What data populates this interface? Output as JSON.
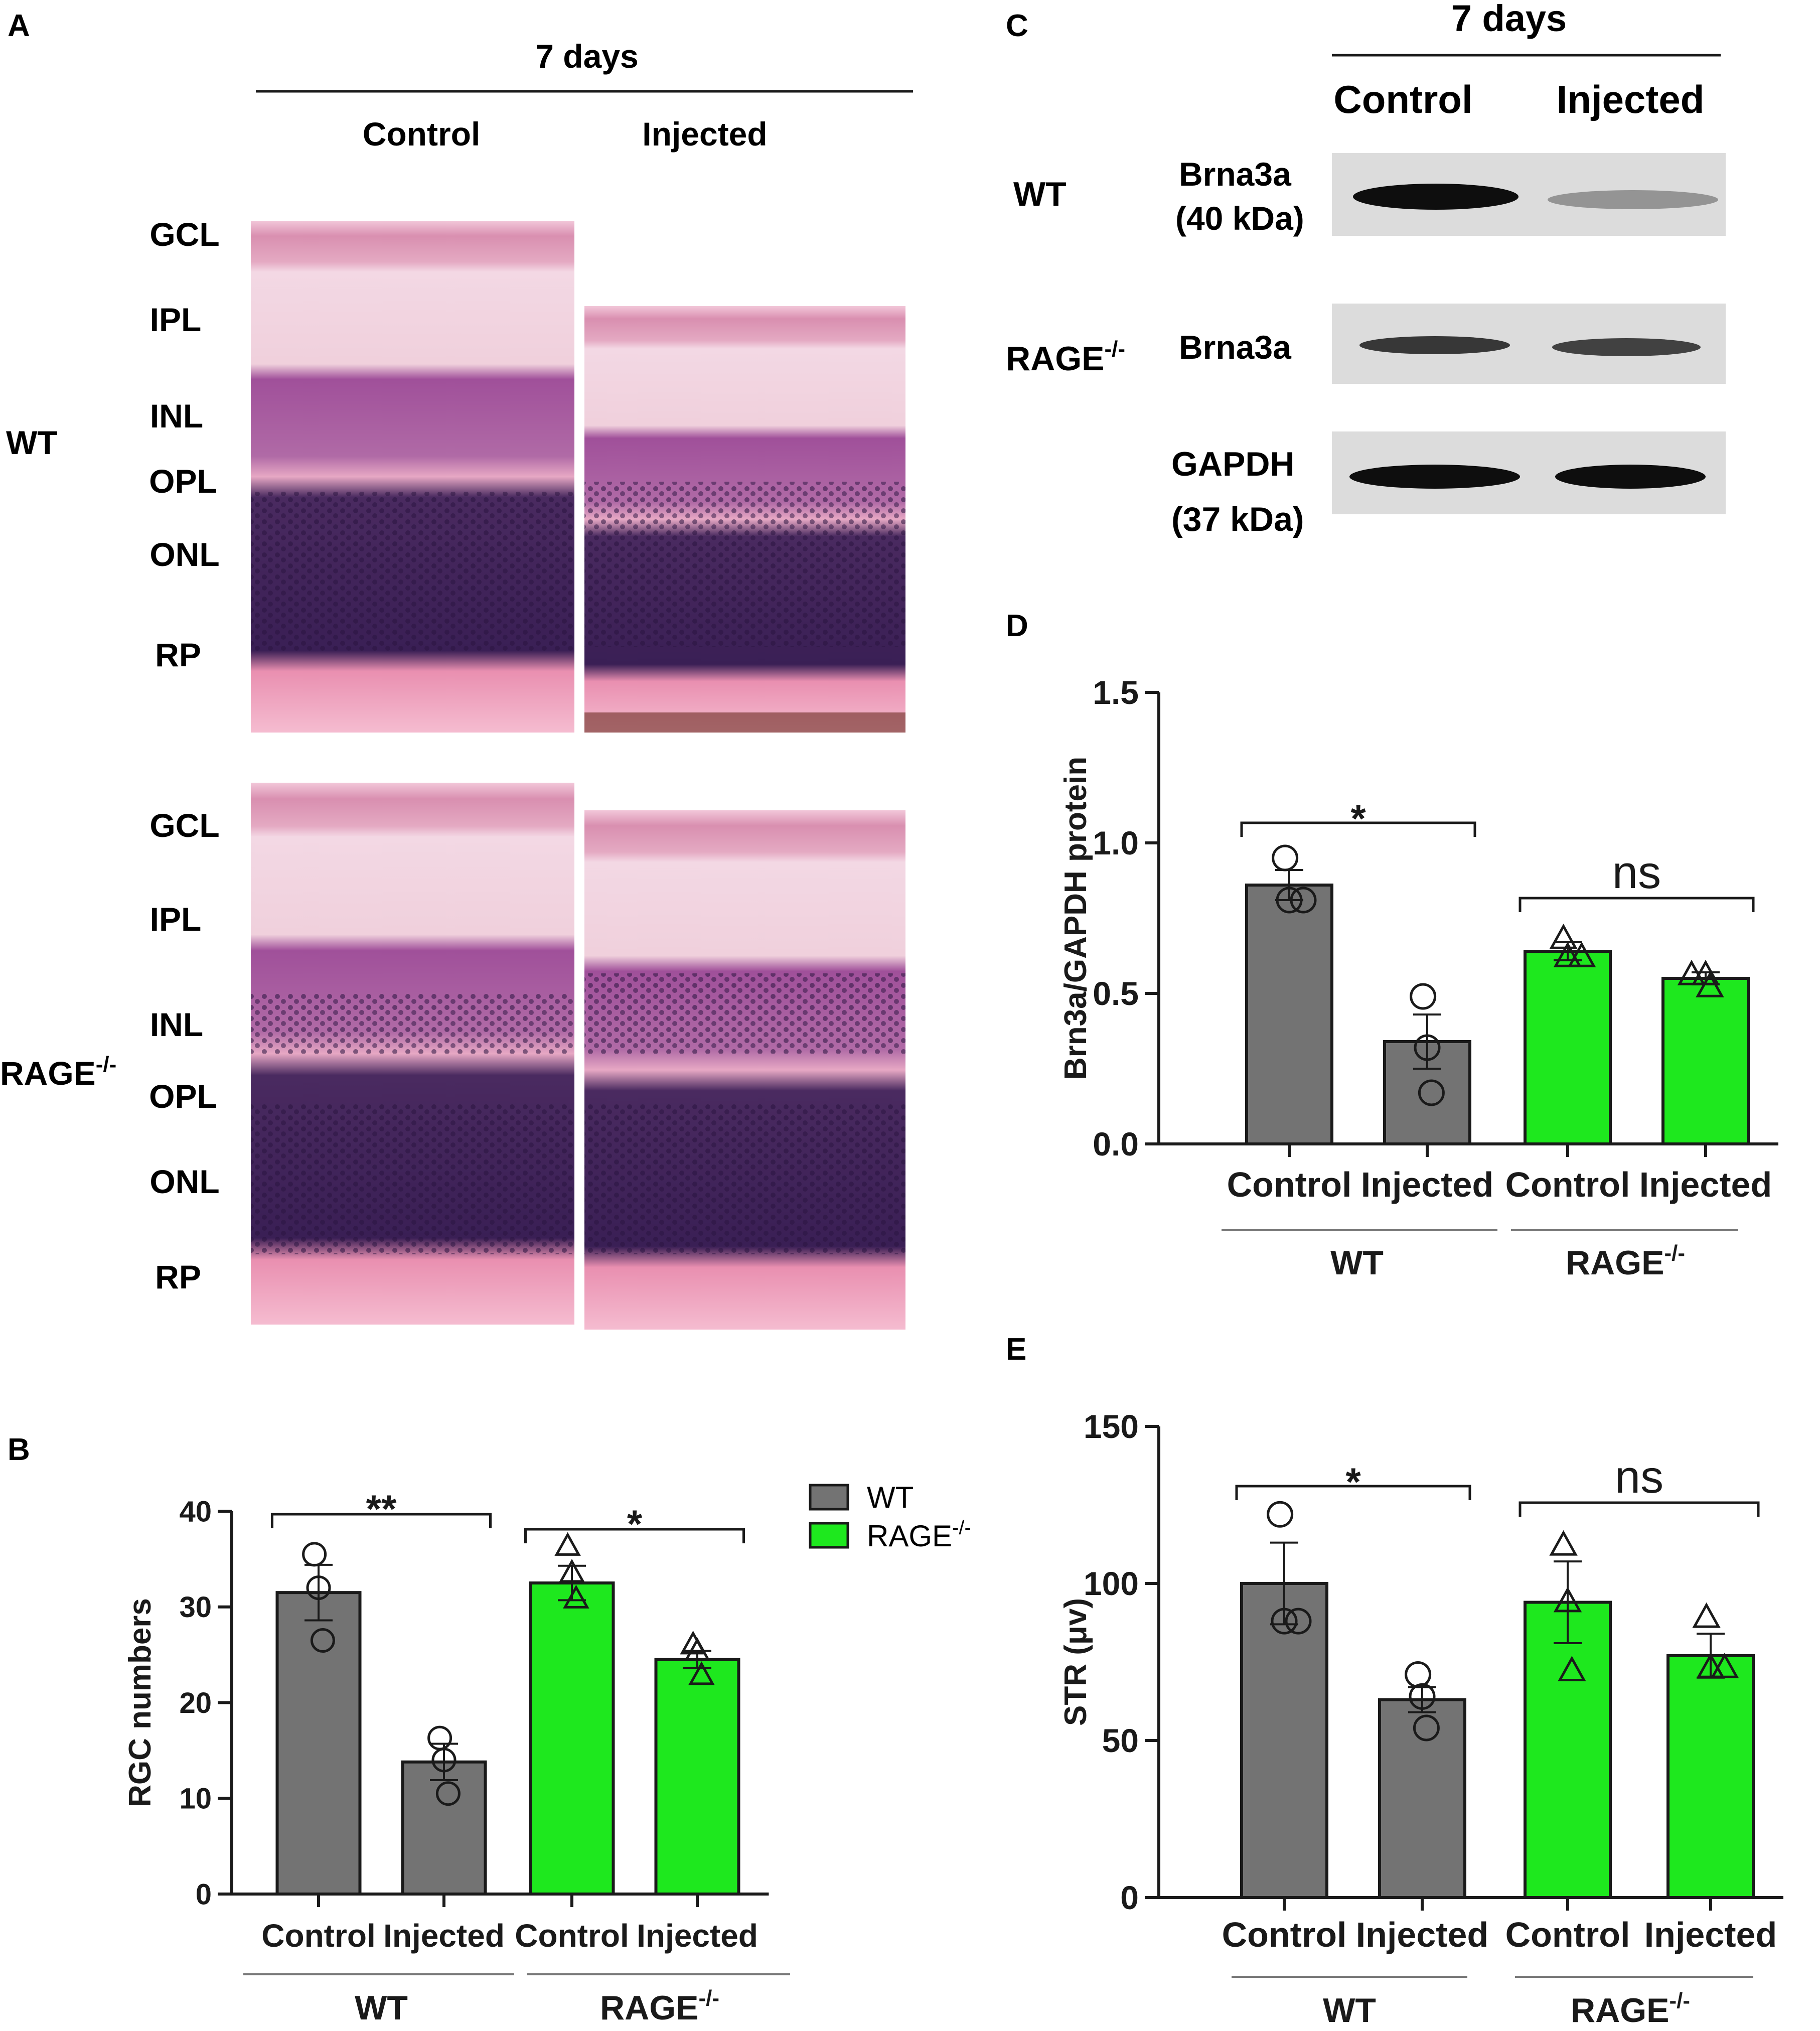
{
  "colors": {
    "wt": "#737373",
    "rage": "#1ee81e",
    "ink": "#1a1a1a",
    "blot_bg": "#dcdcdc",
    "band": "#0e0e0e"
  },
  "panel_a": {
    "letter": "A",
    "time": "7 days",
    "col_headers": [
      "Control",
      "Injected"
    ],
    "rows": [
      {
        "name": "WT",
        "sup": ""
      },
      {
        "name": "RAGE",
        "sup": "-/-"
      }
    ],
    "layers_top": [
      "GCL",
      "IPL",
      "INL",
      "OPL",
      "ONL",
      "RP"
    ],
    "layers_bottom": [
      "GCL",
      "IPL",
      "INL",
      "OPL",
      "ONL",
      "RP"
    ]
  },
  "panel_c": {
    "letter": "C",
    "time": "7 days",
    "col_headers": [
      "Control",
      "Injected"
    ],
    "blots": [
      {
        "row_label": "WT",
        "row_sup": "",
        "protein": "Brna3a",
        "kda": "(40 kDa)",
        "bands": [
          1.0,
          0.35
        ]
      },
      {
        "row_label": "RAGE",
        "row_sup": "-/-",
        "protein": "Brna3a",
        "kda": "",
        "bands": [
          0.75,
          0.7
        ]
      },
      {
        "row_label": "",
        "row_sup": "",
        "protein": "GAPDH",
        "kda": "(37 kDa)",
        "bands": [
          1.0,
          1.0
        ]
      }
    ]
  },
  "panel_b": {
    "letter": "B",
    "legend": [
      {
        "name": "WT",
        "sup": ""
      },
      {
        "name": "RAGE",
        "sup": "-/-"
      }
    ]
  },
  "panel_d": {
    "letter": "D"
  },
  "panel_e": {
    "letter": "E"
  },
  "chart_data": [
    {
      "id": "B",
      "type": "bar",
      "ylabel": "RGC numbers",
      "ylim": [
        0,
        40
      ],
      "yticks": [
        0,
        10,
        20,
        30,
        40
      ],
      "categories": [
        "Control",
        "Injected",
        "Control",
        "Injected"
      ],
      "groups": [
        {
          "name": "WT",
          "sup": ""
        },
        {
          "name": "RAGE",
          "sup": "-/-"
        }
      ],
      "values": [
        31.5,
        13.8,
        32.5,
        24.5
      ],
      "errors": [
        2.9,
        1.9,
        1.8,
        0.9
      ],
      "points": [
        [
          35.5,
          32,
          26.5
        ],
        [
          16.3,
          14,
          10.5
        ],
        [
          36.3,
          33.5,
          30.8
        ],
        [
          26,
          25.3,
          22.8
        ]
      ],
      "markers": [
        "circle",
        "circle",
        "triangle",
        "triangle"
      ],
      "significance": [
        {
          "from": 0,
          "to": 1,
          "label": "**"
        },
        {
          "from": 2,
          "to": 3,
          "label": "*"
        }
      ]
    },
    {
      "id": "D",
      "type": "bar",
      "ylabel": "Brn3a/GAPDH protein",
      "ylim": [
        0,
        1.5
      ],
      "yticks": [
        0.0,
        0.5,
        1.0,
        1.5
      ],
      "categories": [
        "Control",
        "Injected",
        "Control",
        "Injected"
      ],
      "groups": [
        {
          "name": "WT",
          "sup": ""
        },
        {
          "name": "RAGE",
          "sup": "-/-"
        }
      ],
      "values": [
        0.86,
        0.34,
        0.64,
        0.55
      ],
      "errors": [
        0.05,
        0.09,
        0.03,
        0.02
      ],
      "points": [
        [
          0.95,
          0.81,
          0.81
        ],
        [
          0.49,
          0.32,
          0.17
        ],
        [
          0.68,
          0.62,
          0.62
        ],
        [
          0.56,
          0.56,
          0.52
        ]
      ],
      "markers": [
        "circle",
        "circle",
        "triangle",
        "triangle"
      ],
      "significance": [
        {
          "from": 0,
          "to": 1,
          "label": "*"
        },
        {
          "from": 2,
          "to": 3,
          "label": "ns"
        }
      ]
    },
    {
      "id": "E",
      "type": "bar",
      "ylabel": "STR (μv)",
      "ylim": [
        0,
        150
      ],
      "yticks": [
        0,
        50,
        100,
        150
      ],
      "categories": [
        "Control",
        "Injected",
        "Control",
        "Injected"
      ],
      "groups": [
        {
          "name": "WT",
          "sup": ""
        },
        {
          "name": "RAGE",
          "sup": "-/-"
        }
      ],
      "values": [
        100,
        63,
        94,
        77
      ],
      "errors": [
        13,
        4,
        13,
        7
      ],
      "points": [
        [
          122,
          88,
          88
        ],
        [
          71,
          64,
          54
        ],
        [
          112,
          94,
          72
        ],
        [
          89,
          73,
          73
        ]
      ],
      "markers": [
        "circle",
        "circle",
        "triangle",
        "triangle"
      ],
      "significance": [
        {
          "from": 0,
          "to": 1,
          "label": "*"
        },
        {
          "from": 2,
          "to": 3,
          "label": "ns"
        }
      ]
    }
  ]
}
